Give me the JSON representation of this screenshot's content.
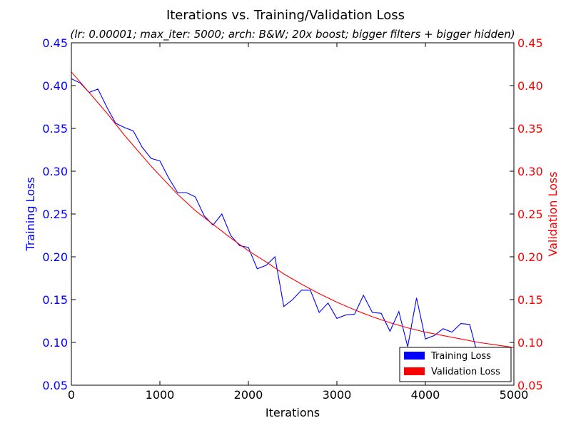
{
  "chart_data": {
    "type": "line",
    "title": "Iterations vs. Training/Validation Loss",
    "subtitle": "(lr: 0.00001; max_iter: 5000; arch: B&W; 20x boost; bigger filters + bigger hidden)",
    "xlabel": "Iterations",
    "ylabel_left": "Training Loss",
    "ylabel_right": "Validation Loss",
    "xlim": [
      0,
      5000
    ],
    "ylim": [
      0.05,
      0.45
    ],
    "x_ticks": [
      0,
      1000,
      2000,
      3000,
      4000,
      5000
    ],
    "y_ticks": [
      0.05,
      0.1,
      0.15,
      0.2,
      0.25,
      0.3,
      0.35,
      0.4,
      0.45
    ],
    "grid": false,
    "legend_position": "bottom-right",
    "series": [
      {
        "name": "Training Loss",
        "color": "#0000ff",
        "axis": "left",
        "x": [
          0,
          100,
          200,
          300,
          400,
          500,
          600,
          700,
          800,
          900,
          1000,
          1100,
          1200,
          1300,
          1400,
          1500,
          1600,
          1700,
          1800,
          1900,
          2000,
          2100,
          2200,
          2300,
          2400,
          2500,
          2600,
          2700,
          2800,
          2900,
          3000,
          3100,
          3200,
          3300,
          3400,
          3500,
          3600,
          3700,
          3800,
          3900,
          4000,
          4100,
          4200,
          4300,
          4400,
          4500,
          4600
        ],
        "y": [
          0.408,
          0.403,
          0.392,
          0.396,
          0.375,
          0.356,
          0.351,
          0.347,
          0.328,
          0.315,
          0.312,
          0.292,
          0.275,
          0.275,
          0.27,
          0.248,
          0.237,
          0.25,
          0.225,
          0.213,
          0.211,
          0.186,
          0.19,
          0.2,
          0.142,
          0.15,
          0.161,
          0.161,
          0.135,
          0.146,
          0.128,
          0.132,
          0.133,
          0.155,
          0.135,
          0.134,
          0.113,
          0.136,
          0.095,
          0.152,
          0.104,
          0.108,
          0.116,
          0.112,
          0.122,
          0.121,
          0.082
        ]
      },
      {
        "name": "Validation Loss",
        "color": "#ff0000",
        "axis": "right",
        "x": [
          0,
          100,
          200,
          300,
          400,
          500,
          600,
          700,
          800,
          900,
          1000,
          1200,
          1400,
          1600,
          1800,
          2000,
          2200,
          2400,
          2600,
          2800,
          3000,
          3200,
          3400,
          3600,
          3800,
          4000,
          4200,
          4400,
          4600,
          4800,
          5000
        ],
        "y": [
          0.416,
          0.404,
          0.392,
          0.38,
          0.368,
          0.355,
          0.342,
          0.33,
          0.318,
          0.306,
          0.295,
          0.273,
          0.254,
          0.238,
          0.222,
          0.207,
          0.194,
          0.18,
          0.168,
          0.157,
          0.147,
          0.138,
          0.13,
          0.123,
          0.117,
          0.112,
          0.108,
          0.104,
          0.1,
          0.097,
          0.094
        ]
      }
    ]
  }
}
